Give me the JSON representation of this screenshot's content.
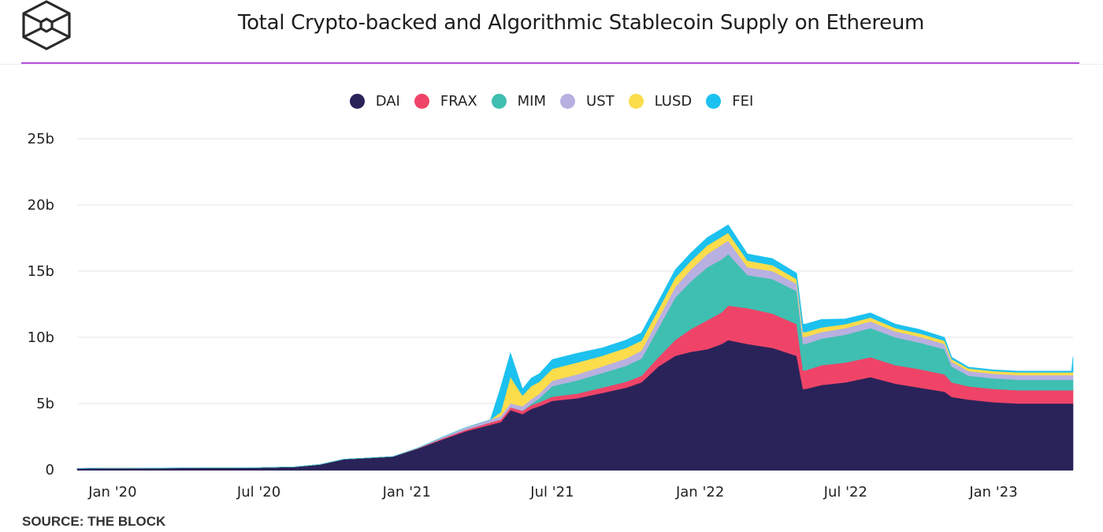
{
  "header": {
    "title": "Total Crypto-backed and Algorithmic Stablecoin Supply on Ethereum",
    "logo_icon": "the-block-cube-logo"
  },
  "footer": {
    "source": "SOURCE: THE BLOCK"
  },
  "colors": {
    "accent_rule": "#b44fe0",
    "DAI": "#2a2359",
    "FRAX": "#ef4468",
    "MIM": "#3fbfb1",
    "UST": "#b8b0e0",
    "LUSD": "#fbdc4b",
    "FEI": "#1cc1ef"
  },
  "chart_data": {
    "type": "area",
    "stacked": true,
    "title": "Total Crypto-backed and Algorithmic Stablecoin Supply on Ethereum",
    "xlabel": "",
    "ylabel": "",
    "ylim": [
      0,
      25
    ],
    "yunit": "billions USD",
    "yticks": [
      0,
      5,
      10,
      15,
      20,
      25
    ],
    "ytick_labels": [
      "0",
      "5b",
      "10b",
      "15b",
      "20b",
      "25b"
    ],
    "xticks": [
      "2020-01",
      "2020-07",
      "2021-01",
      "2021-07",
      "2022-01",
      "2022-07",
      "2023-01"
    ],
    "xtick_labels": [
      "Jan '20",
      "Jul '20",
      "Jan '21",
      "Jul '21",
      "Jan '22",
      "Jul '22",
      "Jan '23"
    ],
    "xrange": [
      "2019-11-18",
      "2023-04-10"
    ],
    "grid": true,
    "legend_position": "top-center",
    "x": [
      "2019-11-18",
      "2020-01-01",
      "2020-03-01",
      "2020-05-01",
      "2020-07-01",
      "2020-08-15",
      "2020-09-15",
      "2020-10-15",
      "2020-11-15",
      "2020-12-15",
      "2021-01-15",
      "2021-02-15",
      "2021-03-15",
      "2021-04-15",
      "2021-04-28",
      "2021-05-10",
      "2021-05-25",
      "2021-06-05",
      "2021-06-15",
      "2021-07-01",
      "2021-08-01",
      "2021-09-01",
      "2021-10-01",
      "2021-10-20",
      "2021-11-10",
      "2021-12-01",
      "2021-12-20",
      "2022-01-10",
      "2022-01-28",
      "2022-02-05",
      "2022-03-01",
      "2022-04-01",
      "2022-05-01",
      "2022-05-09",
      "2022-05-12",
      "2022-06-01",
      "2022-07-01",
      "2022-08-01",
      "2022-09-01",
      "2022-10-01",
      "2022-11-01",
      "2022-11-10",
      "2022-12-01",
      "2023-01-01",
      "2023-02-01",
      "2023-03-01",
      "2023-04-01",
      "2023-04-08",
      "2023-04-10"
    ],
    "series": [
      {
        "name": "DAI",
        "values": [
          0.1,
          0.12,
          0.13,
          0.14,
          0.16,
          0.22,
          0.4,
          0.8,
          0.9,
          1.0,
          1.6,
          2.3,
          2.9,
          3.4,
          3.6,
          4.5,
          4.2,
          4.6,
          4.8,
          5.2,
          5.4,
          5.8,
          6.2,
          6.6,
          7.8,
          8.6,
          8.9,
          9.1,
          9.5,
          9.8,
          9.5,
          9.2,
          8.6,
          6.1,
          6.1,
          6.4,
          6.6,
          7.0,
          6.5,
          6.2,
          5.9,
          5.5,
          5.3,
          5.1,
          5.0,
          5.0,
          5.0,
          5.0,
          5.0
        ]
      },
      {
        "name": "FRAX",
        "values": [
          0,
          0,
          0,
          0,
          0,
          0,
          0,
          0,
          0,
          0,
          0.03,
          0.08,
          0.12,
          0.18,
          0.2,
          0.22,
          0.25,
          0.28,
          0.3,
          0.32,
          0.35,
          0.4,
          0.45,
          0.5,
          0.7,
          1.2,
          1.7,
          2.2,
          2.4,
          2.6,
          2.7,
          2.6,
          2.4,
          1.4,
          1.4,
          1.5,
          1.5,
          1.5,
          1.4,
          1.4,
          1.3,
          1.1,
          1.0,
          1.0,
          1.0,
          1.0,
          1.0,
          1.0,
          1.0
        ]
      },
      {
        "name": "MIM",
        "values": [
          0,
          0,
          0,
          0,
          0,
          0,
          0,
          0,
          0,
          0,
          0,
          0,
          0,
          0,
          0,
          0,
          0,
          0.1,
          0.3,
          0.8,
          1.0,
          1.1,
          1.2,
          1.3,
          2.2,
          3.2,
          3.6,
          4.0,
          4.0,
          3.9,
          2.5,
          2.6,
          2.5,
          2.0,
          2.0,
          2.0,
          2.1,
          2.2,
          2.1,
          2.0,
          1.9,
          1.2,
          0.8,
          0.8,
          0.8,
          0.8,
          0.8,
          0.8,
          0.8
        ]
      },
      {
        "name": "UST",
        "values": [
          0,
          0,
          0,
          0,
          0,
          0,
          0,
          0,
          0,
          0,
          0.02,
          0.1,
          0.15,
          0.2,
          0.25,
          0.3,
          0.35,
          0.35,
          0.35,
          0.4,
          0.45,
          0.5,
          0.55,
          0.6,
          0.7,
          0.8,
          0.9,
          1.0,
          1.1,
          1.0,
          0.6,
          0.6,
          0.55,
          0.55,
          0.55,
          0.5,
          0.5,
          0.5,
          0.45,
          0.45,
          0.4,
          0.35,
          0.35,
          0.35,
          0.35,
          0.35,
          0.35,
          0.35,
          0.35
        ]
      },
      {
        "name": "LUSD",
        "values": [
          0,
          0,
          0,
          0,
          0,
          0,
          0,
          0,
          0,
          0,
          0,
          0,
          0,
          0,
          0.3,
          2.0,
          0.8,
          1.0,
          0.9,
          0.9,
          0.9,
          0.8,
          0.8,
          0.75,
          0.7,
          0.7,
          0.65,
          0.65,
          0.6,
          0.6,
          0.5,
          0.45,
          0.35,
          0.35,
          0.35,
          0.35,
          0.3,
          0.3,
          0.25,
          0.25,
          0.25,
          0.2,
          0.2,
          0.2,
          0.2,
          0.2,
          0.2,
          0.2,
          0.2
        ]
      },
      {
        "name": "FEI",
        "values": [
          0,
          0,
          0,
          0,
          0,
          0,
          0,
          0,
          0,
          0,
          0,
          0,
          0,
          0,
          1.9,
          1.8,
          0.5,
          0.6,
          0.6,
          0.7,
          0.7,
          0.6,
          0.6,
          0.6,
          0.6,
          0.6,
          0.6,
          0.6,
          0.6,
          0.6,
          0.5,
          0.5,
          0.45,
          0.6,
          0.6,
          0.6,
          0.4,
          0.35,
          0.3,
          0.3,
          0.25,
          0.15,
          0.1,
          0.1,
          0.1,
          0.1,
          0.1,
          0.1,
          1.2
        ]
      }
    ]
  }
}
